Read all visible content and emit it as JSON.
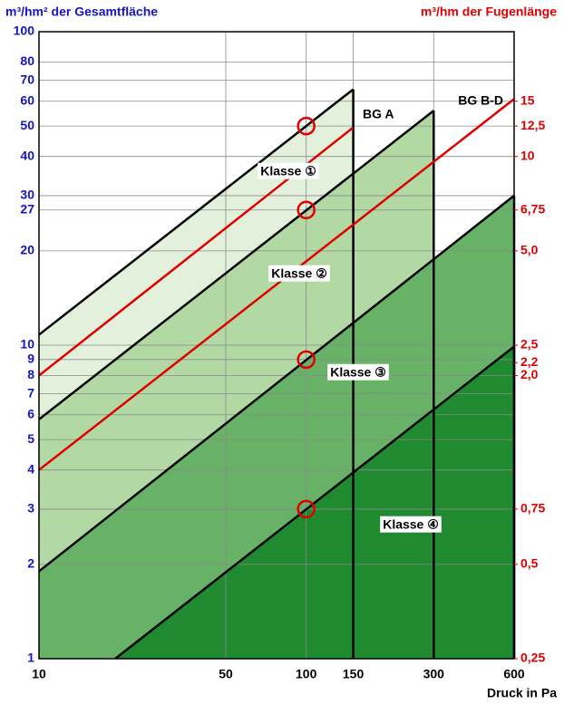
{
  "chart_data": {
    "type": "line",
    "title_left": "m³/hm² der Gesamtfläche",
    "title_right": "m³/hm der Fugenlänge",
    "x_label": "Druck in Pa",
    "log_x": true,
    "log_y": true,
    "grid": true,
    "xlim": [
      10,
      600
    ],
    "xticks": [
      10,
      50,
      100,
      150,
      300,
      600
    ],
    "ylim": [
      1,
      100
    ],
    "yticks": [
      1,
      2,
      3,
      4,
      5,
      6,
      7,
      8,
      9,
      10,
      20,
      27,
      30,
      40,
      50,
      60,
      70,
      80,
      100
    ],
    "y_color": "#1414c8",
    "y2lim": [
      0.25,
      25
    ],
    "y2ticks": [
      {
        "value": 0.25,
        "label": "0,25"
      },
      {
        "value": 0.5,
        "label": "0,5"
      },
      {
        "value": 0.75,
        "label": "0,75"
      },
      {
        "value": 2.0,
        "label": "2,0"
      },
      {
        "value": 2.2,
        "label": "2,2"
      },
      {
        "value": 2.5,
        "label": "2,5"
      },
      {
        "value": 5.0,
        "label": "5,0"
      },
      {
        "value": 6.75,
        "label": "6,75"
      },
      10,
      {
        "value": 12.5,
        "label": "12,5"
      },
      15
    ],
    "y2_color": "#e00000",
    "series": [
      {
        "name": "Klasse ①",
        "color": "#000000",
        "fill": "#e3f0db",
        "x": [
          10,
          150
        ],
        "values": [
          10.8,
          65.5
        ]
      },
      {
        "name": "Klasse ②",
        "color": "#000000",
        "fill": "#b2d8a3",
        "x": [
          10,
          300
        ],
        "values": [
          5.8,
          56
        ]
      },
      {
        "name": "Klasse ③",
        "color": "#000000",
        "fill": "#67b267",
        "x": [
          10,
          600
        ],
        "values": [
          1.9,
          30
        ]
      },
      {
        "name": "Klasse ④",
        "color": "#000000",
        "fill": "#1f8a30",
        "x": [
          19.3,
          600
        ],
        "values": [
          1,
          9.9
        ]
      },
      {
        "name": "BG A",
        "color": "#e00000",
        "x": [
          10,
          150
        ],
        "values": [
          8,
          49.5
        ]
      },
      {
        "name": "BG B-D",
        "color": "#e00000",
        "x": [
          10,
          600
        ],
        "values": [
          4,
          61
        ]
      }
    ],
    "markers": {
      "color": "#e00000",
      "x": [
        100,
        100,
        100,
        100
      ],
      "values": [
        50,
        27,
        9,
        3
      ]
    }
  }
}
